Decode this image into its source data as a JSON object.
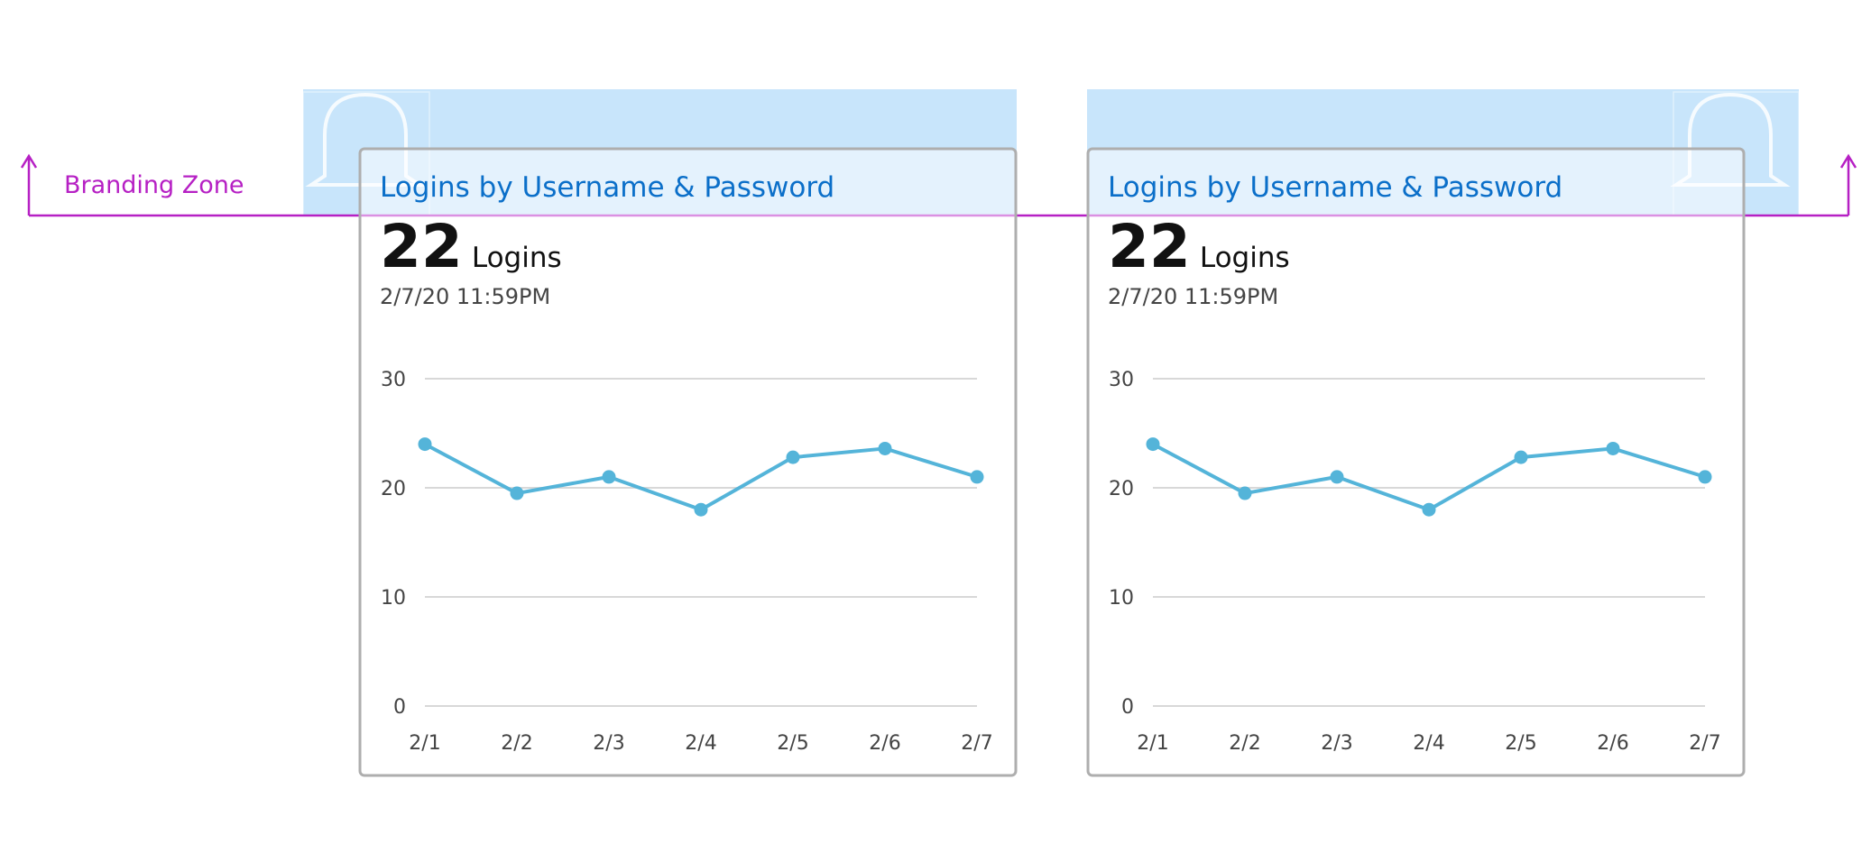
{
  "branding_label": "Branding Zone",
  "chart_data": [
    {
      "type": "line",
      "title": "Logins by Username & Password",
      "metric": 22,
      "metric_unit": "Logins",
      "timestamp": "2/7/20 11:59PM",
      "categories": [
        "2/1",
        "2/2",
        "2/3",
        "2/4",
        "2/5",
        "2/6",
        "2/7"
      ],
      "values": [
        24,
        19.5,
        21,
        18,
        22.8,
        23.6,
        21
      ],
      "color": "#54b4d9",
      "ylim": [
        0,
        30
      ],
      "yticks": [
        0,
        10,
        20,
        30
      ],
      "grid": true
    },
    {
      "type": "line",
      "title": "Logins by Username & Password",
      "metric": 22,
      "metric_unit": "Logins",
      "timestamp": "2/7/20 11:59PM",
      "categories": [
        "2/1",
        "2/2",
        "2/3",
        "2/4",
        "2/5",
        "2/6",
        "2/7"
      ],
      "values": [
        24,
        19.5,
        21,
        18,
        22.8,
        23.6,
        21
      ],
      "color": "#54b4d9",
      "ylim": [
        0,
        30
      ],
      "yticks": [
        0,
        10,
        20,
        30
      ],
      "grid": true
    }
  ]
}
